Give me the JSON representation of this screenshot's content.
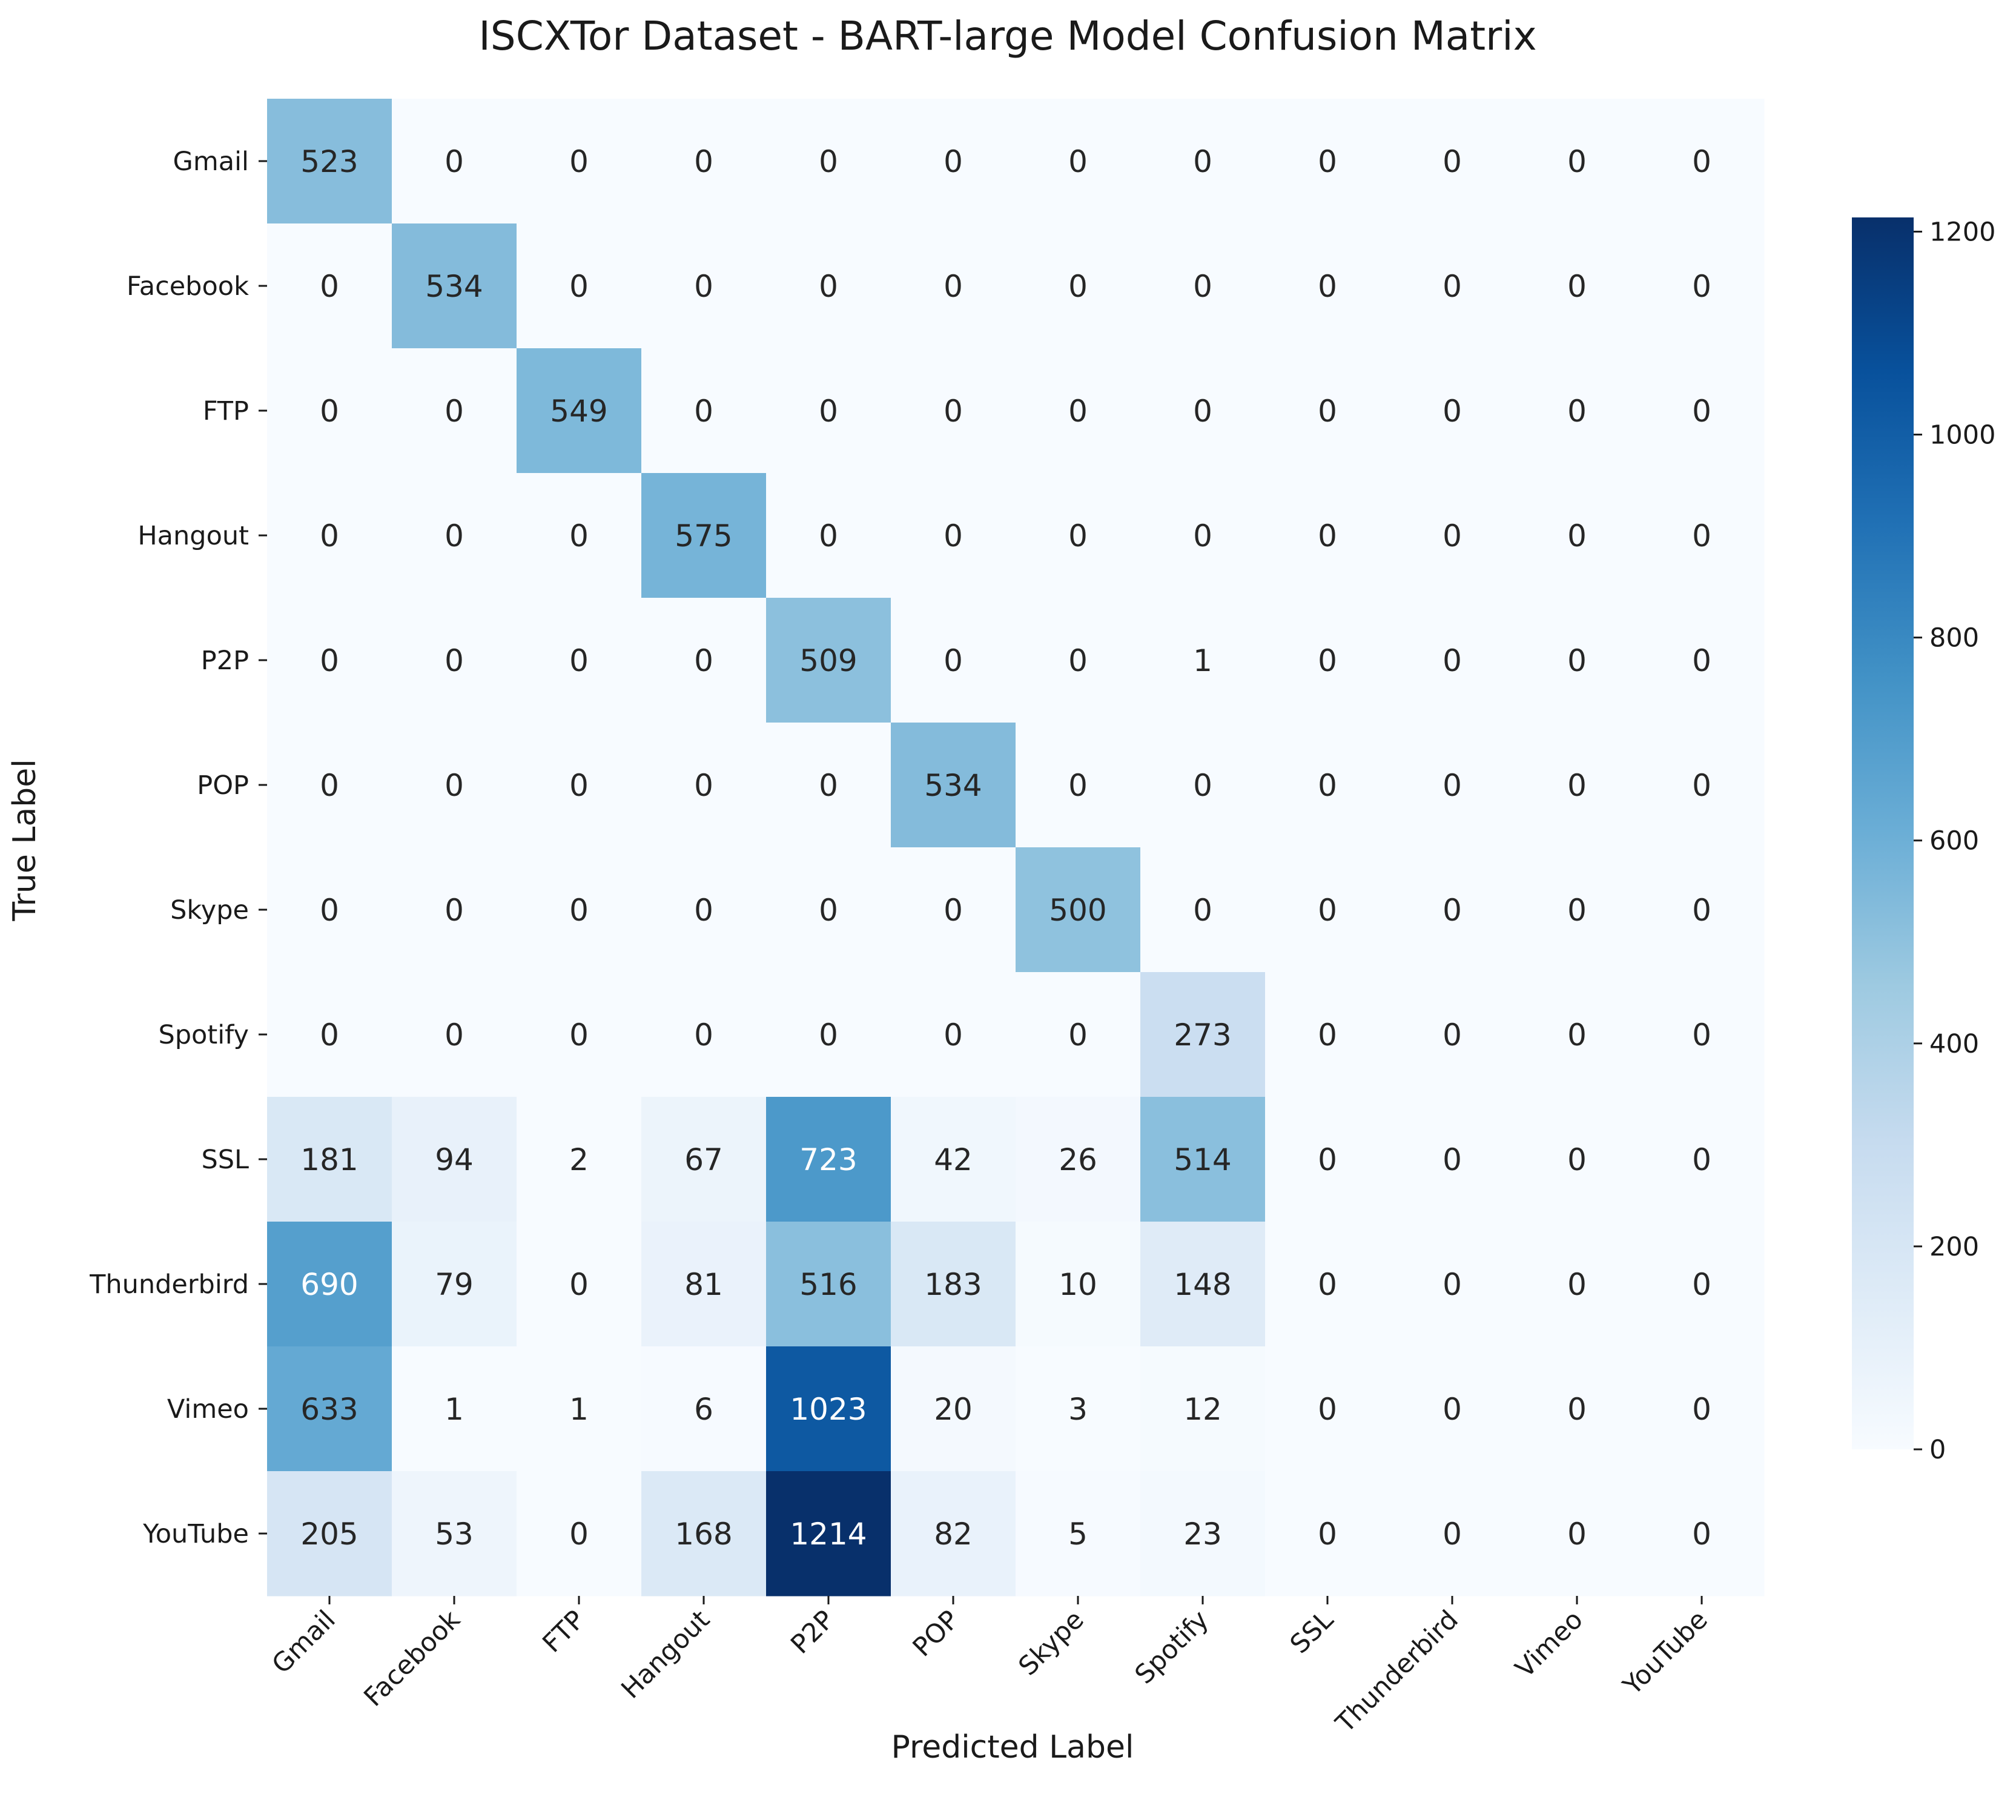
{
  "chart_data": {
    "type": "heatmap",
    "title": "ISCXTor Dataset - BART-large Model Confusion Matrix",
    "xlabel": "Predicted Label",
    "ylabel": "True Label",
    "x_categories": [
      "Gmail",
      "Facebook",
      "FTP",
      "Hangout",
      "P2P",
      "POP",
      "Skype",
      "Spotify",
      "SSL",
      "Thunderbird",
      "Vimeo",
      "YouTube"
    ],
    "y_categories": [
      "Gmail",
      "Facebook",
      "FTP",
      "Hangout",
      "P2P",
      "POP",
      "Skype",
      "Spotify",
      "SSL",
      "Thunderbird",
      "Vimeo",
      "YouTube"
    ],
    "values": [
      [
        523,
        0,
        0,
        0,
        0,
        0,
        0,
        0,
        0,
        0,
        0,
        0
      ],
      [
        0,
        534,
        0,
        0,
        0,
        0,
        0,
        0,
        0,
        0,
        0,
        0
      ],
      [
        0,
        0,
        549,
        0,
        0,
        0,
        0,
        0,
        0,
        0,
        0,
        0
      ],
      [
        0,
        0,
        0,
        575,
        0,
        0,
        0,
        0,
        0,
        0,
        0,
        0
      ],
      [
        0,
        0,
        0,
        0,
        509,
        0,
        0,
        1,
        0,
        0,
        0,
        0
      ],
      [
        0,
        0,
        0,
        0,
        0,
        534,
        0,
        0,
        0,
        0,
        0,
        0
      ],
      [
        0,
        0,
        0,
        0,
        0,
        0,
        500,
        0,
        0,
        0,
        0,
        0
      ],
      [
        0,
        0,
        0,
        0,
        0,
        0,
        0,
        273,
        0,
        0,
        0,
        0
      ],
      [
        181,
        94,
        2,
        67,
        723,
        42,
        26,
        514,
        0,
        0,
        0,
        0
      ],
      [
        690,
        79,
        0,
        81,
        516,
        183,
        10,
        148,
        0,
        0,
        0,
        0
      ],
      [
        633,
        1,
        1,
        6,
        1023,
        20,
        3,
        12,
        0,
        0,
        0,
        0
      ],
      [
        205,
        53,
        0,
        168,
        1214,
        82,
        5,
        23,
        0,
        0,
        0,
        0
      ]
    ],
    "colormap": "Blues",
    "colorbar": {
      "vmin": 0,
      "vmax": 1214,
      "ticks": [
        0,
        200,
        400,
        600,
        800,
        1000,
        1200
      ]
    }
  }
}
